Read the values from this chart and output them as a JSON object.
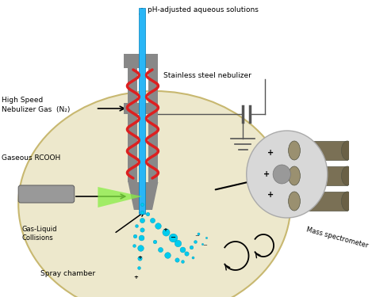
{
  "bg_color": "#ffffff",
  "chamber_color": "#ede8cc",
  "chamber_edge_color": "#c8b870",
  "gray_color": "#888888",
  "dark_gray": "#555555",
  "tube_color": "#29b6f6",
  "red_color": "#dd2020",
  "droplet_color": "#00ccee",
  "labels": {
    "top_arrow": "pH-adjusted aqueous solutions",
    "nebulizer": "Stainless steel nebulizer",
    "gas_label": "High Speed\nNebulizer Gas  (N₂)",
    "rcooh": "Gaseous RCOOH",
    "collisions": "Gas-Liquid\nCollisions",
    "spray_chamber": "Spray chamber",
    "mass_spec": "Mass spectrometer"
  }
}
